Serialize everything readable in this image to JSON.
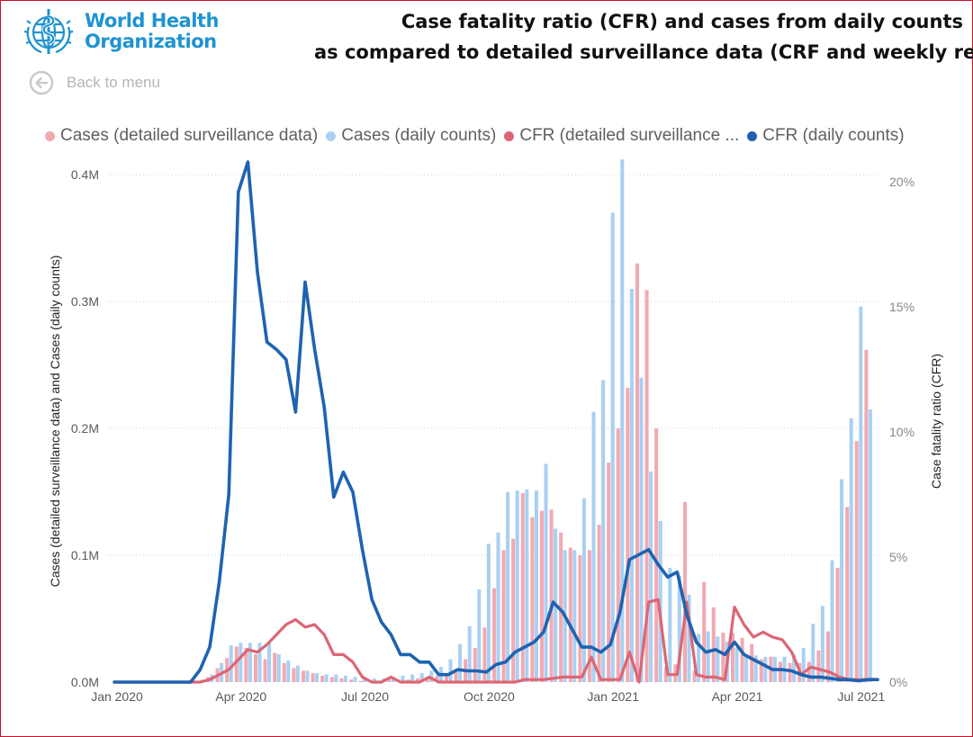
{
  "logo": {
    "line1": "World Health",
    "line2": "Organization",
    "color": "#1f93d1"
  },
  "header": {
    "title_line1": "Case fatality ratio (CFR) and cases from daily counts",
    "title_line2": "as compared to detailed surveillance data (CRF and weekly re"
  },
  "nav": {
    "back_label": "Back to menu",
    "back_icon": "arrow-left-circle-icon"
  },
  "legend": {
    "items": [
      {
        "label": "Cases (detailed surveillance data)",
        "color": "#f2a9b2"
      },
      {
        "label": "Cases (daily counts)",
        "color": "#a9d0f2"
      },
      {
        "label": "CFR (detailed surveillance ...",
        "color": "#dc6673"
      },
      {
        "label": "CFR (daily counts)",
        "color": "#1f63b0"
      }
    ]
  },
  "chart_data": {
    "type": "bar",
    "title": "Case fatality ratio (CFR) and cases from daily counts as compared to detailed surveillance data (CRF and weekly re",
    "xlabel": "",
    "ylabel": "Cases (detailed surveillance data) and Cases (daily counts)",
    "y2label": "Case fatality ratio (CFR)",
    "ylim": [
      0,
      0.41
    ],
    "y_units": "millions of cases per week",
    "y2lim": [
      0,
      20.8
    ],
    "y2_units": "percent",
    "yticks": [
      {
        "value": 0.0,
        "label": "0.0M"
      },
      {
        "value": 0.1,
        "label": "0.1M"
      },
      {
        "value": 0.2,
        "label": "0.2M"
      },
      {
        "value": 0.3,
        "label": "0.3M"
      },
      {
        "value": 0.4,
        "label": "0.4M"
      }
    ],
    "y2ticks": [
      {
        "value": 0,
        "label": "0%"
      },
      {
        "value": 5,
        "label": "5%"
      },
      {
        "value": 10,
        "label": "10%"
      },
      {
        "value": 15,
        "label": "15%"
      },
      {
        "value": 20,
        "label": "20%"
      }
    ],
    "xticks": [
      {
        "week": 0,
        "label": "Jan 2020"
      },
      {
        "week": 13,
        "label": "Apr 2020"
      },
      {
        "week": 26,
        "label": "Jul 2020"
      },
      {
        "week": 39,
        "label": "Oct 2020"
      },
      {
        "week": 52,
        "label": "Jan 2021"
      },
      {
        "week": 65,
        "label": "Apr 2021"
      },
      {
        "week": 78,
        "label": "Jul 2021"
      }
    ],
    "grid": true,
    "legend_position": "top",
    "n_weeks": 81,
    "series": [
      {
        "name": "Cases (detailed surveillance data)",
        "kind": "bar",
        "axis": "left",
        "color": "#f2a9b2",
        "values": [
          0,
          0,
          0,
          0,
          0,
          0,
          0,
          0,
          0,
          0.001,
          0.004,
          0.011,
          0.019,
          0.028,
          0.027,
          0.022,
          0.018,
          0.023,
          0.015,
          0.011,
          0.009,
          0.007,
          0.005,
          0.004,
          0.003,
          0.002,
          0.001,
          0.001,
          0.001,
          0.002,
          0.002,
          0.002,
          0.003,
          0.004,
          0.005,
          0.007,
          0.01,
          0.018,
          0.027,
          0.043,
          0.074,
          0.104,
          0.113,
          0.149,
          0.13,
          0.135,
          0.136,
          0.118,
          0.106,
          0.1,
          0.104,
          0.124,
          0.173,
          0.2,
          0.232,
          0.33,
          0.309,
          0.2,
          0.012,
          0.014,
          0.142,
          0.009,
          0.079,
          0.059,
          0.039,
          0.039,
          0.035,
          0.03,
          0.018,
          0.02,
          0.016,
          0.015,
          0.015,
          0.016,
          0.025,
          0.04,
          0.09,
          0.138,
          0.19,
          0.262,
          0
        ]
      },
      {
        "name": "Cases (daily counts)",
        "kind": "bar",
        "axis": "left",
        "color": "#a9d0f2",
        "values": [
          0,
          0,
          0,
          0,
          0,
          0,
          0,
          0,
          0,
          0.002,
          0.006,
          0.015,
          0.029,
          0.031,
          0.031,
          0.031,
          0.031,
          0.022,
          0.017,
          0.013,
          0.009,
          0.007,
          0.006,
          0.006,
          0.005,
          0.004,
          0.003,
          0.003,
          0.003,
          0.004,
          0.005,
          0.006,
          0.007,
          0.009,
          0.012,
          0.018,
          0.03,
          0.044,
          0.073,
          0.109,
          0.118,
          0.15,
          0.151,
          0.152,
          0.151,
          0.172,
          0.121,
          0.104,
          0.104,
          0.145,
          0.213,
          0.238,
          0.37,
          0.412,
          0.31,
          0.24,
          0.166,
          0.127,
          0.09,
          0.084,
          0.069,
          0.038,
          0.04,
          0.036,
          0.032,
          0.027,
          0.022,
          0.021,
          0.02,
          0.02,
          0.02,
          0.022,
          0.027,
          0.046,
          0.06,
          0.096,
          0.16,
          0.208,
          0.296,
          0.215,
          0
        ]
      },
      {
        "name": "CFR (detailed surveillance data)",
        "kind": "line",
        "axis": "right",
        "color": "#dc6673",
        "values": [
          0,
          0,
          0,
          0,
          0,
          0,
          0,
          0,
          0,
          0,
          0.1,
          0.3,
          0.5,
          0.9,
          1.3,
          1.2,
          1.5,
          1.9,
          2.3,
          2.5,
          2.2,
          2.3,
          1.9,
          1.1,
          1.1,
          0.8,
          0.2,
          0,
          0,
          0.2,
          0,
          0,
          0,
          0.2,
          0,
          0,
          0,
          0,
          0,
          0,
          0,
          0,
          0,
          0.1,
          0.1,
          0.1,
          0.15,
          0.2,
          0.2,
          0.2,
          1.0,
          0.1,
          0.1,
          0.1,
          1.2,
          0,
          3.2,
          3.3,
          0.3,
          0.3,
          3.2,
          0.3,
          0.2,
          0.2,
          0.1,
          3.0,
          2.3,
          1.8,
          2.0,
          1.8,
          1.7,
          1.2,
          0.3,
          0.6,
          0.5,
          0.4,
          0.2,
          0.1,
          0.1,
          0.1,
          0.1
        ]
      },
      {
        "name": "CFR (daily counts)",
        "kind": "line",
        "axis": "right",
        "color": "#1f63b0",
        "values": [
          0,
          0,
          0,
          0,
          0,
          0,
          0,
          0,
          0,
          0.5,
          1.4,
          4.0,
          7.5,
          19.6,
          20.8,
          16.4,
          13.6,
          13.3,
          12.9,
          10.8,
          16.0,
          13.3,
          11.0,
          7.4,
          8.4,
          7.6,
          5.3,
          3.3,
          2.4,
          1.9,
          1.1,
          1.1,
          0.8,
          0.8,
          0.3,
          0.3,
          0.5,
          0.45,
          0.45,
          0.4,
          0.7,
          0.8,
          1.2,
          1.4,
          1.6,
          2.0,
          3.2,
          2.8,
          2.1,
          1.4,
          1.4,
          1.2,
          1.5,
          2.8,
          4.9,
          5.1,
          5.3,
          4.7,
          4.2,
          4.4,
          2.7,
          1.6,
          1.2,
          1.3,
          1.1,
          1.6,
          1.1,
          0.9,
          0.7,
          0.5,
          0.5,
          0.45,
          0.3,
          0.2,
          0.2,
          0.15,
          0.1,
          0.1,
          0.05,
          0.1,
          0.1
        ]
      }
    ]
  }
}
